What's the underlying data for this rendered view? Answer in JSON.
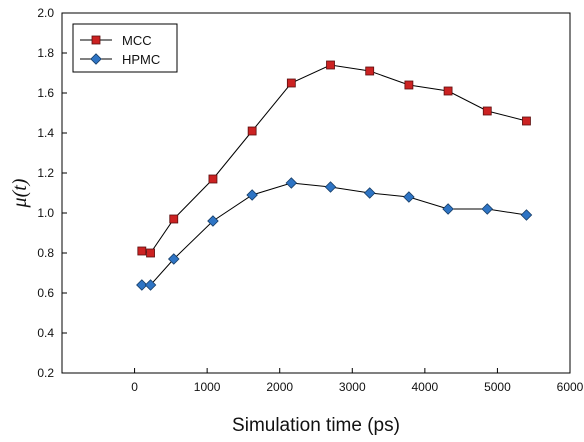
{
  "chart_data": {
    "type": "line",
    "title": "",
    "xlabel": "Simulation time (ps)",
    "ylabel": "μ(t)",
    "xlim": [
      -1000,
      6000
    ],
    "ylim": [
      0.2,
      2.0
    ],
    "xticks": [
      0,
      1000,
      2000,
      3000,
      4000,
      5000,
      6000
    ],
    "yticks": [
      0.2,
      0.4,
      0.6,
      0.8,
      1.0,
      1.2,
      1.4,
      1.6,
      1.8,
      2.0
    ],
    "grid": false,
    "legend_position": "top-left",
    "series": [
      {
        "name": "MCC",
        "marker": "square",
        "color": "#cc2222",
        "x": [
          100,
          220,
          540,
          1080,
          1620,
          2160,
          2700,
          3240,
          3780,
          4320,
          4860,
          5400
        ],
        "y": [
          0.81,
          0.8,
          0.97,
          1.17,
          1.41,
          1.65,
          1.74,
          1.71,
          1.64,
          1.61,
          1.51,
          1.46
        ]
      },
      {
        "name": "HPMC",
        "marker": "diamond",
        "color": "#2e74c4",
        "x": [
          100,
          220,
          540,
          1080,
          1620,
          2160,
          2700,
          3240,
          3780,
          4320,
          4860,
          5400
        ],
        "y": [
          0.64,
          0.64,
          0.77,
          0.96,
          1.09,
          1.15,
          1.13,
          1.1,
          1.08,
          1.02,
          1.02,
          0.99
        ]
      }
    ]
  }
}
